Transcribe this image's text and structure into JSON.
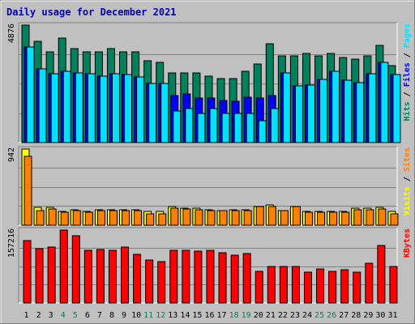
{
  "chart_data": {
    "type": "bar",
    "title": "Daily usage for December 2021",
    "days": [
      "1",
      "2",
      "3",
      "4",
      "5",
      "6",
      "7",
      "8",
      "9",
      "10",
      "11",
      "12",
      "13",
      "14",
      "15",
      "16",
      "17",
      "18",
      "19",
      "20",
      "21",
      "22",
      "23",
      "24",
      "25",
      "26",
      "27",
      "28",
      "29",
      "30",
      "31"
    ],
    "weekend_days": [
      4,
      5,
      11,
      12,
      18,
      19,
      25,
      26
    ],
    "panels": [
      {
        "id": "hits",
        "ymax_label": "4876",
        "ymax": 4876,
        "labels": [
          {
            "text": "Hits",
            "color": "#00805c"
          },
          {
            "text": " / ",
            "color": "#000000"
          },
          {
            "text": "Files",
            "color": "#0000ff"
          },
          {
            "text": " / ",
            "color": "#000000"
          },
          {
            "text": "Pages",
            "color": "#00e0ff"
          }
        ],
        "series": [
          {
            "name": "Hits",
            "color": "#00805c",
            "values": [
              4876,
              4212,
              3758,
              4350,
              3902,
              3758,
              3758,
              3902,
              3758,
              3758,
              3396,
              3324,
              2890,
              2890,
              2890,
              2745,
              2673,
              2673,
              2962,
              3251,
              4118,
              3613,
              3613,
              3685,
              3613,
              3685,
              3541,
              3469,
              3613,
              4031,
              3179
            ]
          },
          {
            "name": "Files",
            "color": "#0000ff",
            "values": [
              3975,
              3049,
              2867,
              2976,
              2895,
              2849,
              2758,
              2849,
              2821,
              2713,
              2440,
              2440,
              1940,
              2031,
              1849,
              1849,
              1759,
              1713,
              1895,
              1840,
              1940,
              2894,
              2358,
              2394,
              2631,
              2949,
              2585,
              2485,
              2849,
              3330,
              2812
            ]
          },
          {
            "name": "Pages",
            "color": "#00e0ff",
            "values": [
              3975,
              3049,
              2867,
              2976,
              2895,
              2849,
              2758,
              2849,
              2821,
              2713,
              2440,
              2440,
              1306,
              1397,
              1216,
              1397,
              1216,
              1216,
              1216,
              920,
              1397,
              2894,
              2358,
              2394,
              2631,
              2949,
              2585,
              2485,
              2849,
              3330,
              2812
            ]
          }
        ]
      },
      {
        "id": "visits",
        "ymax_label": "942",
        "ymax": 942,
        "labels": [
          {
            "text": "Visits",
            "color": "#ffff00"
          },
          {
            "text": " / ",
            "color": "#000000"
          },
          {
            "text": "Sites",
            "color": "#ff8000"
          }
        ],
        "series": [
          {
            "name": "Visits",
            "color": "#ffff00",
            "values": [
              942,
              218,
              218,
              167,
              195,
              167,
              195,
              195,
              195,
              195,
              167,
              167,
              226,
              210,
              210,
              195,
              181,
              195,
              195,
              235,
              247,
              182,
              233,
              167,
              167,
              167,
              167,
              210,
              210,
              218,
              167
            ]
          },
          {
            "name": "Sites",
            "color": "#ff8000",
            "values": [
              851,
              181,
              203,
              159,
              181,
              159,
              181,
              181,
              181,
              181,
              145,
              145,
              210,
              203,
              195,
              181,
              181,
              181,
              181,
              226,
              226,
              181,
              226,
              159,
              159,
              159,
              159,
              195,
              195,
              203,
              145
            ]
          }
        ]
      },
      {
        "id": "kbytes",
        "ymax_label": "157216",
        "ymax": 157216,
        "labels": [
          {
            "text": "KBytes",
            "color": "#ff0000"
          }
        ],
        "series": [
          {
            "name": "KBytes",
            "color": "#ff0000",
            "values": [
              134000,
              117000,
              121000,
              157216,
              145000,
              113000,
              115000,
              114000,
              120000,
              104000,
              93000,
              89000,
              114000,
              114000,
              112000,
              114000,
              109000,
              103000,
              107000,
              69000,
              78000,
              78000,
              78000,
              66000,
              73000,
              69000,
              71000,
              66000,
              85000,
              124000,
              78000
            ]
          }
        ]
      }
    ]
  }
}
